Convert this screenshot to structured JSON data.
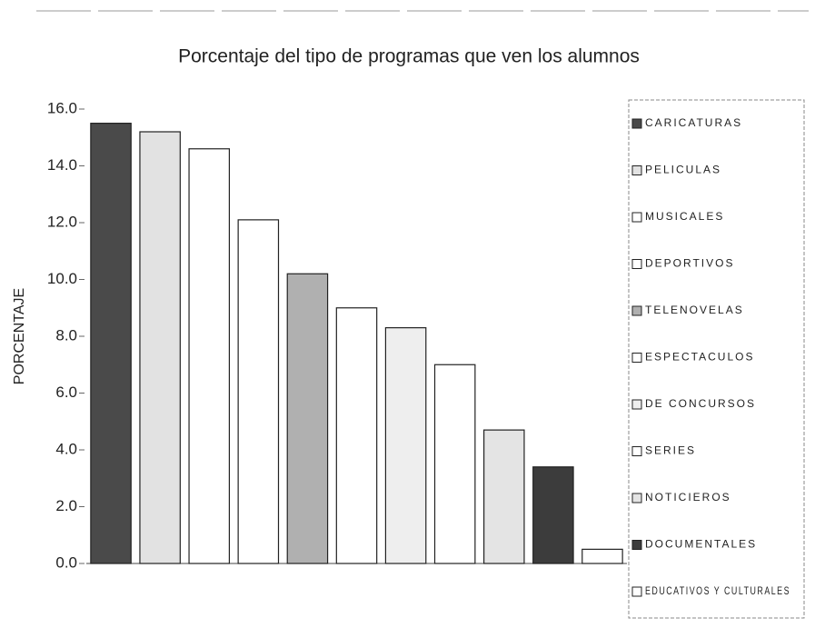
{
  "chart_data": {
    "type": "bar",
    "title": "Porcentaje del tipo de programas que  ven los alumnos",
    "y_label": "PORCENTAJE",
    "categories": [
      "CARICATURAS",
      "PELICULAS",
      "MUSICALES",
      "DEPORTIVOS",
      "TELENOVELAS",
      "ESPECTACULOS",
      "DE CONCURSOS",
      "SERIES",
      "NOTICIEROS",
      "DOCUMENTALES",
      "EDUCATIVOS Y CULTURALES"
    ],
    "values": [
      15.5,
      15.2,
      14.6,
      12.1,
      10.2,
      9.0,
      8.3,
      7.0,
      4.7,
      3.4,
      0.5
    ],
    "colors": [
      "#4a4a4a",
      "#e2e2e2",
      "#ffffff",
      "#ffffff",
      "#b0b0b0",
      "#ffffff",
      "#eeeeee",
      "#ffffff",
      "#e4e4e4",
      "#3c3c3c",
      "#ffffff"
    ],
    "ylim": [
      0,
      16
    ],
    "yticks": [
      {
        "value": 0,
        "label": "0.0"
      },
      {
        "value": 2,
        "label": "2.0"
      },
      {
        "value": 4,
        "label": "4.0"
      },
      {
        "value": 6,
        "label": "6.0"
      },
      {
        "value": 8,
        "label": "8.0"
      },
      {
        "value": 10,
        "label": "10.0"
      },
      {
        "value": 12,
        "label": "12.0"
      },
      {
        "value": 14,
        "label": "14.0"
      },
      {
        "value": 16,
        "label": "16.0"
      }
    ],
    "grid": false,
    "legend": "right"
  }
}
